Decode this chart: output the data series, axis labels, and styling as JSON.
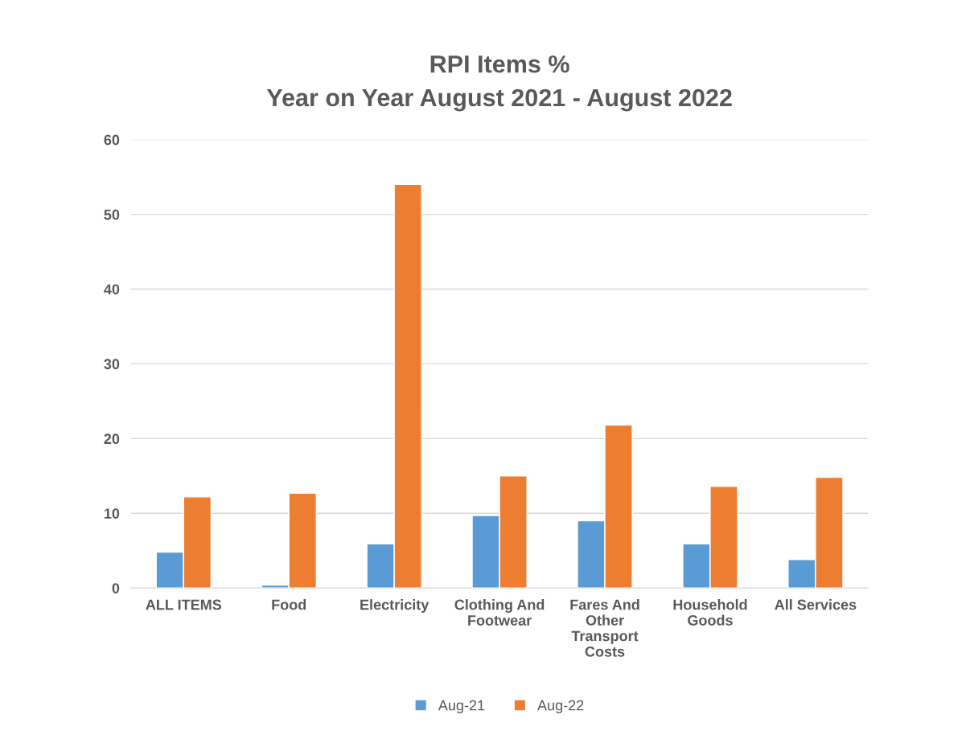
{
  "chart_data": {
    "type": "bar",
    "title": "RPI Items %\nYear on Year August 2021 - August 2022",
    "categories": [
      "ALL ITEMS",
      "Food",
      "Electricity",
      "Clothing And\nFootwear",
      "Fares And\nOther\nTransport\nCosts",
      "Household\nGoods",
      "All Services"
    ],
    "series": [
      {
        "name": "Aug-21",
        "color": "#5b9bd5",
        "values": [
          4.8,
          0.4,
          5.9,
          9.7,
          9.0,
          5.9,
          3.8
        ]
      },
      {
        "name": "Aug-22",
        "color": "#ed7d31",
        "values": [
          12.2,
          12.7,
          54.0,
          15.0,
          21.8,
          13.6,
          14.8
        ]
      }
    ],
    "ylim": [
      0,
      60
    ],
    "yticks": [
      0,
      10,
      20,
      30,
      40,
      50,
      60
    ],
    "grid": "y",
    "legend": "bottom"
  }
}
